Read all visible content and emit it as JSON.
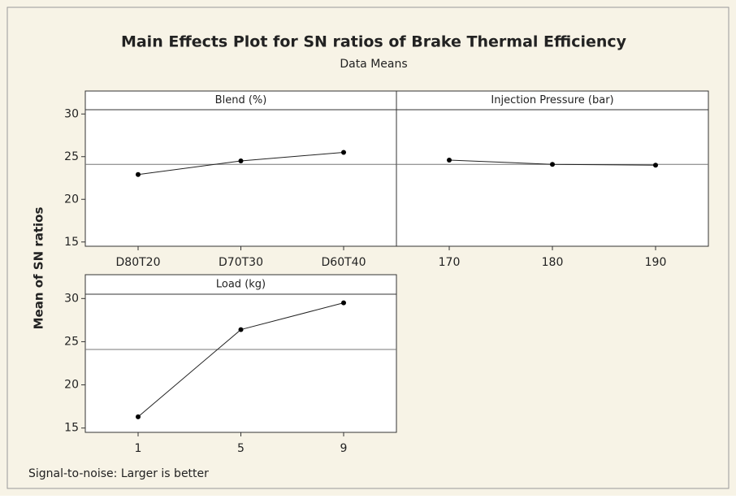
{
  "title": "Main Effects Plot for SN ratios of Brake Thermal Efficiency",
  "subtitle": "Data Means",
  "y_label": "Mean of SN ratios",
  "footnote": "Signal-to-noise: Larger is better",
  "chart_data": [
    {
      "type": "line",
      "title": "Blend (%)",
      "categories": [
        "D80T20",
        "D70T30",
        "D60T40"
      ],
      "values": [
        22.9,
        24.5,
        25.5
      ],
      "reference_line": 24.1,
      "ylim": [
        14.5,
        30.5
      ],
      "yticks": [
        15,
        20,
        25,
        30
      ]
    },
    {
      "type": "line",
      "title": "Injection  Pressure (bar)",
      "categories": [
        "170",
        "180",
        "190"
      ],
      "values": [
        24.6,
        24.1,
        24.0
      ],
      "reference_line": 24.1,
      "ylim": [
        14.5,
        30.5
      ]
    },
    {
      "type": "line",
      "title": "Load (kg)",
      "categories": [
        "1",
        "5",
        "9"
      ],
      "values": [
        16.3,
        26.4,
        29.5
      ],
      "reference_line": 24.1,
      "ylim": [
        14.5,
        30.5
      ],
      "yticks": [
        15,
        20,
        25,
        30
      ]
    }
  ]
}
